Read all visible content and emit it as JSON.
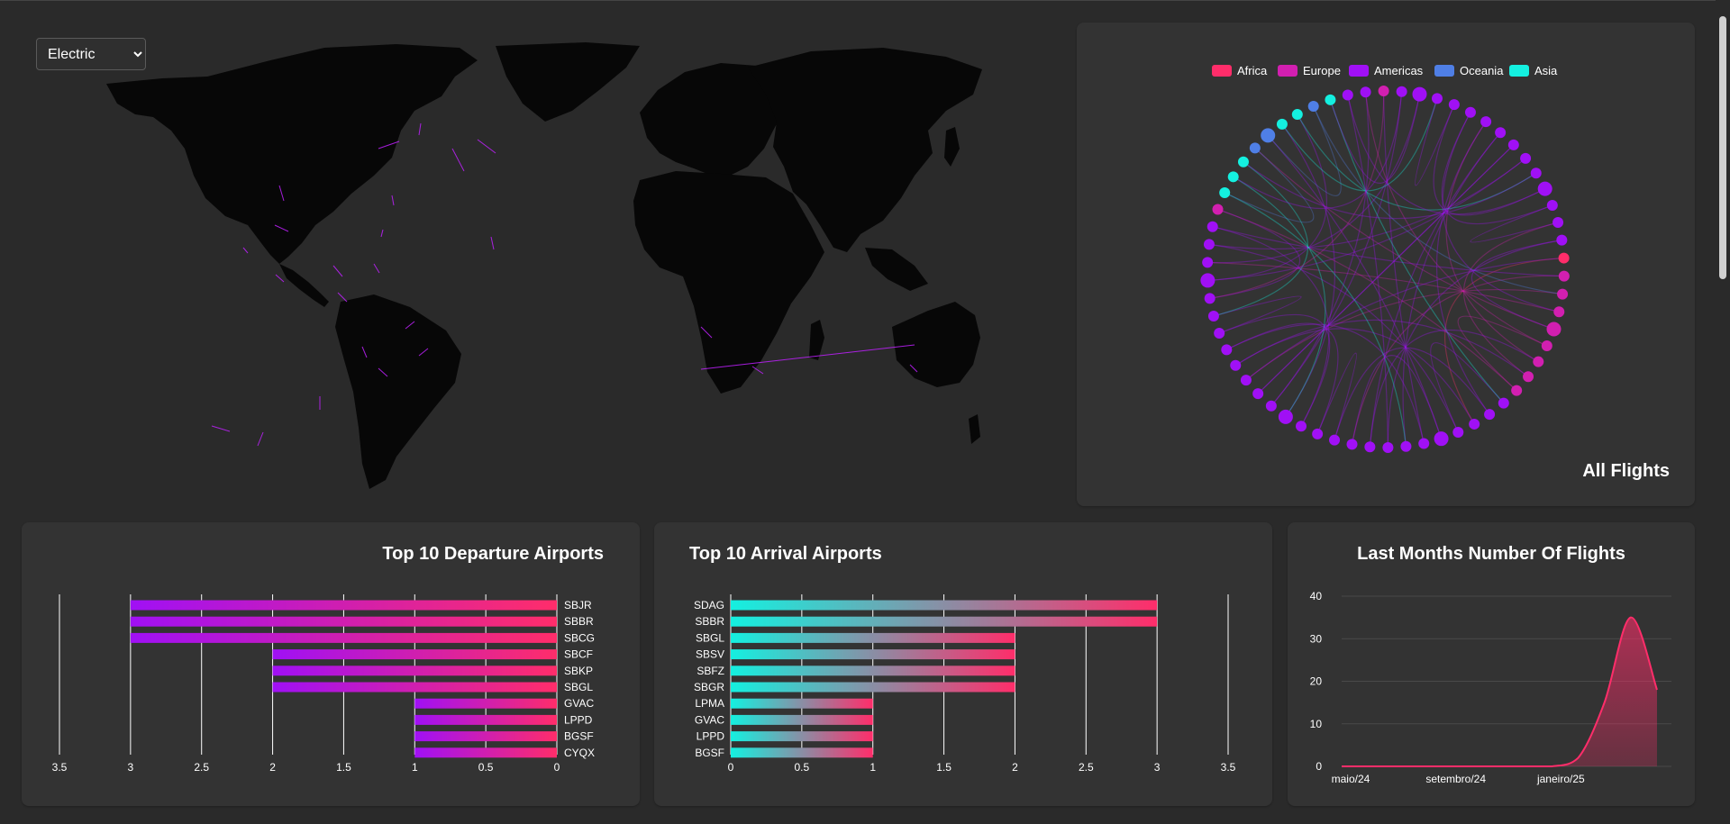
{
  "map": {
    "selected_style": "Electric",
    "style_options": [
      "Electric"
    ]
  },
  "chord": {
    "title": "All Flights",
    "legend": [
      {
        "label": "Africa",
        "color": "#ff2d6a"
      },
      {
        "label": "Europe",
        "color": "#d21fb0"
      },
      {
        "label": "Americas",
        "color": "#a010f5"
      },
      {
        "label": "Oceania",
        "color": "#4f7fe6"
      },
      {
        "label": "Asia",
        "color": "#14f0e0"
      }
    ]
  },
  "colors": {
    "departure_start": "#a010f5",
    "departure_end": "#ff2d6a",
    "arrival_start": "#14f0e0",
    "arrival_end": "#ff2d6a",
    "line": "#ff2d6a"
  },
  "chart_data": [
    {
      "type": "bar",
      "title": "Top 10 Departure Airports",
      "orientation": "horizontal-reversed",
      "categories": [
        "SBJR",
        "SBBR",
        "SBCG",
        "SBCF",
        "SBKP",
        "SBGL",
        "GVAC",
        "LPPD",
        "BGSF",
        "CYQX"
      ],
      "values": [
        3,
        3,
        3,
        2,
        2,
        2,
        1,
        1,
        1,
        1
      ],
      "xlim": [
        0,
        3.5
      ],
      "ticks": [
        "3.5",
        "3",
        "2.5",
        "2",
        "1.5",
        "1",
        "0.5",
        "0"
      ]
    },
    {
      "type": "bar",
      "title": "Top 10 Arrival Airports",
      "orientation": "horizontal",
      "categories": [
        "SDAG",
        "SBBR",
        "SBGL",
        "SBSV",
        "SBFZ",
        "SBGR",
        "LPMA",
        "GVAC",
        "LPPD",
        "BGSF"
      ],
      "values": [
        3,
        3,
        2,
        2,
        2,
        2,
        1,
        1,
        1,
        1
      ],
      "xlim": [
        0,
        3.5
      ],
      "ticks": [
        "0",
        "0.5",
        "1",
        "1.5",
        "2",
        "2.5",
        "3",
        "3.5"
      ]
    },
    {
      "type": "area",
      "title": "Last Months Number Of Flights",
      "ylim": [
        0,
        40
      ],
      "yticks": [
        "0",
        "10",
        "20",
        "30",
        "40"
      ],
      "xticks": [
        "maio/24",
        "setembro/24",
        "janeiro/25"
      ],
      "x_months": [
        0,
        1,
        2,
        3,
        4,
        5,
        6,
        7,
        8,
        9,
        10,
        11,
        12
      ],
      "values": [
        0,
        0,
        0,
        0,
        0,
        0,
        0,
        0,
        0,
        2,
        15,
        35,
        18
      ]
    }
  ]
}
